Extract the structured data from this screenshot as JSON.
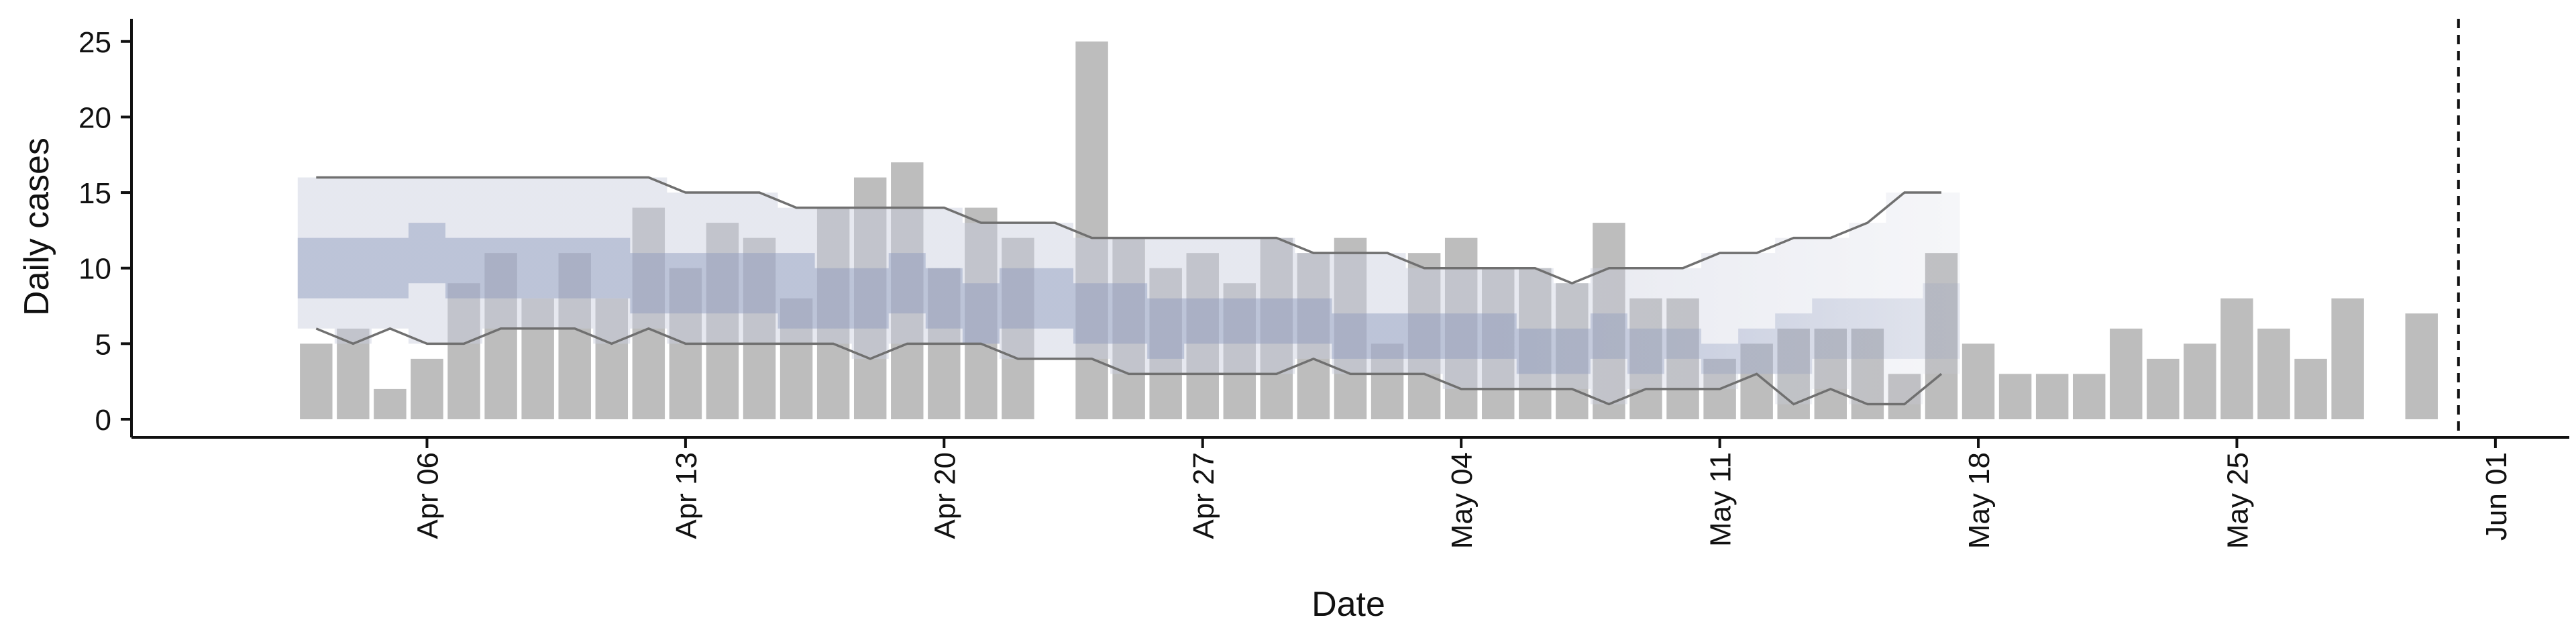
{
  "chart_data": {
    "type": "bar",
    "xlabel": "Date",
    "ylabel": "Daily cases",
    "x_ticks": [
      "Apr 06",
      "Apr 13",
      "Apr 20",
      "Apr 27",
      "May 04",
      "May 11",
      "May 18",
      "May 25",
      "Jun 01"
    ],
    "y_ticks": [
      0,
      5,
      10,
      15,
      20,
      25
    ],
    "ylim": [
      -1.2,
      26.5
    ],
    "xlim": [
      "2020-03-29",
      "2020-06-03"
    ],
    "bars": {
      "color": "#bdbdbd",
      "dates": [
        "2020-04-03",
        "2020-04-04",
        "2020-04-05",
        "2020-04-06",
        "2020-04-07",
        "2020-04-08",
        "2020-04-09",
        "2020-04-10",
        "2020-04-11",
        "2020-04-12",
        "2020-04-13",
        "2020-04-14",
        "2020-04-15",
        "2020-04-16",
        "2020-04-17",
        "2020-04-18",
        "2020-04-19",
        "2020-04-20",
        "2020-04-21",
        "2020-04-22",
        "2020-04-23",
        "2020-04-24",
        "2020-04-25",
        "2020-04-26",
        "2020-04-27",
        "2020-04-28",
        "2020-04-29",
        "2020-04-30",
        "2020-05-01",
        "2020-05-02",
        "2020-05-03",
        "2020-05-04",
        "2020-05-05",
        "2020-05-06",
        "2020-05-07",
        "2020-05-08",
        "2020-05-09",
        "2020-05-10",
        "2020-05-11",
        "2020-05-12",
        "2020-05-13",
        "2020-05-14",
        "2020-05-15",
        "2020-05-16",
        "2020-05-17",
        "2020-05-18",
        "2020-05-19",
        "2020-05-20",
        "2020-05-21",
        "2020-05-22",
        "2020-05-23",
        "2020-05-24",
        "2020-05-25",
        "2020-05-26",
        "2020-05-27",
        "2020-05-28",
        "2020-05-29",
        "2020-05-30",
        "2020-05-31"
      ],
      "values": [
        5,
        6,
        2,
        4,
        9,
        11,
        8,
        11,
        8,
        14,
        10,
        13,
        12,
        8,
        14,
        16,
        17,
        10,
        14,
        12,
        0,
        25,
        12,
        10,
        11,
        9,
        12,
        11,
        12,
        5,
        11,
        12,
        10,
        10,
        9,
        13,
        8,
        8,
        4,
        5,
        6,
        6,
        6,
        3,
        11,
        5,
        3,
        3,
        3,
        6,
        4,
        5,
        8,
        6,
        4,
        8,
        0,
        7,
        0
      ]
    },
    "estimate": {
      "dates": [
        "2020-04-03",
        "2020-04-04",
        "2020-04-05",
        "2020-04-06",
        "2020-04-07",
        "2020-04-08",
        "2020-04-09",
        "2020-04-10",
        "2020-04-11",
        "2020-04-12",
        "2020-04-13",
        "2020-04-14",
        "2020-04-15",
        "2020-04-16",
        "2020-04-17",
        "2020-04-18",
        "2020-04-19",
        "2020-04-20",
        "2020-04-21",
        "2020-04-22",
        "2020-04-23",
        "2020-04-24",
        "2020-04-25",
        "2020-04-26",
        "2020-04-27",
        "2020-04-28",
        "2020-04-29",
        "2020-04-30",
        "2020-05-01",
        "2020-05-02",
        "2020-05-03",
        "2020-05-04",
        "2020-05-05",
        "2020-05-06",
        "2020-05-07",
        "2020-05-08",
        "2020-05-09",
        "2020-05-10",
        "2020-05-11",
        "2020-05-12",
        "2020-05-13",
        "2020-05-14",
        "2020-05-15",
        "2020-05-16",
        "2020-05-17"
      ],
      "outer_upper": [
        16,
        16,
        16,
        16,
        16,
        16,
        16,
        16,
        16,
        16,
        15,
        15,
        15,
        14,
        14,
        14,
        14,
        14,
        13,
        13,
        13,
        12,
        12,
        12,
        12,
        12,
        12,
        11,
        11,
        11,
        10,
        10,
        10,
        10,
        9,
        10,
        10,
        10,
        11,
        11,
        12,
        12,
        13,
        15,
        15
      ],
      "outer_lower": [
        6,
        5,
        6,
        5,
        5,
        6,
        6,
        6,
        5,
        6,
        5,
        5,
        5,
        5,
        5,
        4,
        5,
        5,
        5,
        4,
        4,
        4,
        3,
        3,
        3,
        3,
        3,
        4,
        3,
        3,
        3,
        2,
        2,
        2,
        2,
        1,
        2,
        2,
        2,
        3,
        1,
        2,
        1,
        1,
        3
      ],
      "inner_upper": [
        12,
        12,
        12,
        13,
        12,
        12,
        12,
        12,
        12,
        11,
        11,
        11,
        11,
        11,
        10,
        10,
        11,
        10,
        9,
        10,
        10,
        9,
        9,
        8,
        8,
        8,
        8,
        8,
        7,
        7,
        7,
        7,
        7,
        6,
        6,
        7,
        6,
        6,
        5,
        6,
        7,
        8,
        8,
        8,
        9
      ],
      "inner_lower": [
        8,
        8,
        8,
        9,
        8,
        8,
        8,
        8,
        8,
        7,
        7,
        7,
        7,
        6,
        6,
        6,
        7,
        6,
        5,
        6,
        6,
        5,
        5,
        4,
        5,
        5,
        5,
        5,
        4,
        4,
        4,
        4,
        4,
        3,
        3,
        4,
        3,
        4,
        3,
        3,
        3,
        4,
        4,
        4,
        4
      ]
    },
    "vline_date": "2020-05-31",
    "colors": {
      "bar": "#bdbdbd",
      "outer_band": "#c9cddd",
      "inner_band": "#8c99bd",
      "bound_line": "#707070",
      "axis": "#111111"
    },
    "grid": false,
    "legend": "none"
  }
}
